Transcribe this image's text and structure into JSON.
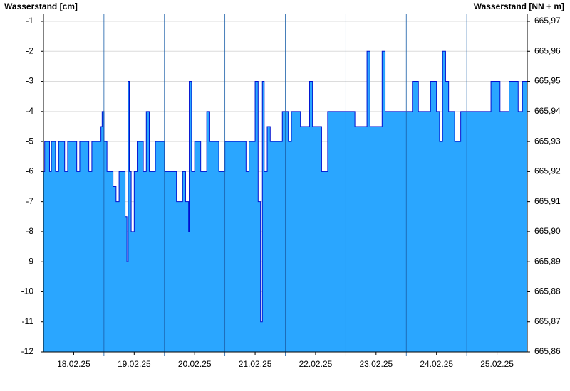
{
  "chart_data": {
    "type": "step-area",
    "y_title": "Wasserstand [cm]",
    "y2_title": "Wasserstand [NN + m]",
    "x": [
      0,
      0.02,
      0.1,
      0.13,
      0.2,
      0.25,
      0.35,
      0.4,
      0.55,
      0.6,
      0.75,
      0.8,
      0.95,
      0.97,
      1.0,
      1.05,
      1.15,
      1.2,
      1.25,
      1.35,
      1.38,
      1.4,
      1.42,
      1.45,
      1.5,
      1.55,
      1.65,
      1.7,
      1.75,
      1.85,
      2.0,
      2.15,
      2.2,
      2.3,
      2.35,
      2.4,
      2.41,
      2.45,
      2.5,
      2.6,
      2.7,
      2.75,
      2.9,
      3.0,
      3.2,
      3.35,
      3.4,
      3.5,
      3.55,
      3.59,
      3.62,
      3.65,
      3.7,
      3.75,
      3.9,
      3.95,
      4.05,
      4.1,
      4.25,
      4.4,
      4.45,
      4.6,
      4.7,
      5.0,
      5.15,
      5.35,
      5.4,
      5.6,
      5.65,
      5.85,
      6.0,
      6.1,
      6.2,
      6.4,
      6.5,
      6.55,
      6.6,
      6.65,
      6.7,
      6.8,
      6.9,
      7.0,
      7.2,
      7.4,
      7.55,
      7.7,
      7.85,
      7.92,
      8.0
    ],
    "series": [
      {
        "name": "Wasserstand",
        "color": "#2aa6ff",
        "line_color": "#0010d0",
        "values": [
          -6,
          -5,
          -6,
          -5,
          -6,
          -5,
          -6,
          -5,
          -6,
          -5,
          -6,
          -5,
          -4.5,
          -4,
          -5,
          -6,
          -6.5,
          -7,
          -6,
          -7.5,
          -9,
          -3,
          -6,
          -8,
          -6,
          -5,
          -6,
          -4,
          -6,
          -5,
          -6,
          -6,
          -7,
          -6,
          -7,
          -8,
          -3,
          -6,
          -5,
          -6,
          -4,
          -5,
          -6,
          -5,
          -5,
          -6,
          -5,
          -3,
          -7,
          -11,
          -3,
          -6,
          -4.5,
          -5,
          -5,
          -4,
          -5,
          -4,
          -4.5,
          -3,
          -4.5,
          -6,
          -4,
          -4,
          -4.5,
          -2,
          -4.5,
          -2,
          -4,
          -4,
          -4,
          -3,
          -4,
          -3,
          -4,
          -5,
          -2,
          -3,
          -4,
          -5,
          -4,
          -4,
          -4,
          -3,
          -4,
          -3,
          -4,
          -3,
          -4
        ]
      }
    ],
    "xlim": [
      0,
      8
    ],
    "xticks": [
      {
        "value": 0.5,
        "label": "18.02.25"
      },
      {
        "value": 1.5,
        "label": "19.02.25"
      },
      {
        "value": 2.5,
        "label": "20.02.25"
      },
      {
        "value": 3.5,
        "label": "21.02.25"
      },
      {
        "value": 4.5,
        "label": "22.02.25"
      },
      {
        "value": 5.5,
        "label": "23.02.25"
      },
      {
        "value": 6.5,
        "label": "24.02.25"
      },
      {
        "value": 7.5,
        "label": "25.02.25"
      }
    ],
    "ylim": [
      -12,
      -1
    ],
    "yticks": [
      -12,
      -11,
      -10,
      -9,
      -8,
      -7,
      -6,
      -5,
      -4,
      -3,
      -2,
      -1
    ],
    "y2lim": [
      665.86,
      665.97
    ],
    "y2ticks": [
      {
        "value": 665.86,
        "label": "665,86"
      },
      {
        "value": 665.87,
        "label": "665,87"
      },
      {
        "value": 665.88,
        "label": "665,88"
      },
      {
        "value": 665.89,
        "label": "665,89"
      },
      {
        "value": 665.9,
        "label": "665,90"
      },
      {
        "value": 665.91,
        "label": "665,91"
      },
      {
        "value": 665.92,
        "label": "665,92"
      },
      {
        "value": 665.93,
        "label": "665,93"
      },
      {
        "value": 665.94,
        "label": "665,94"
      },
      {
        "value": 665.95,
        "label": "665,95"
      },
      {
        "value": 665.96,
        "label": "665,96"
      },
      {
        "value": 665.97,
        "label": "665,97"
      }
    ],
    "grid": true
  }
}
